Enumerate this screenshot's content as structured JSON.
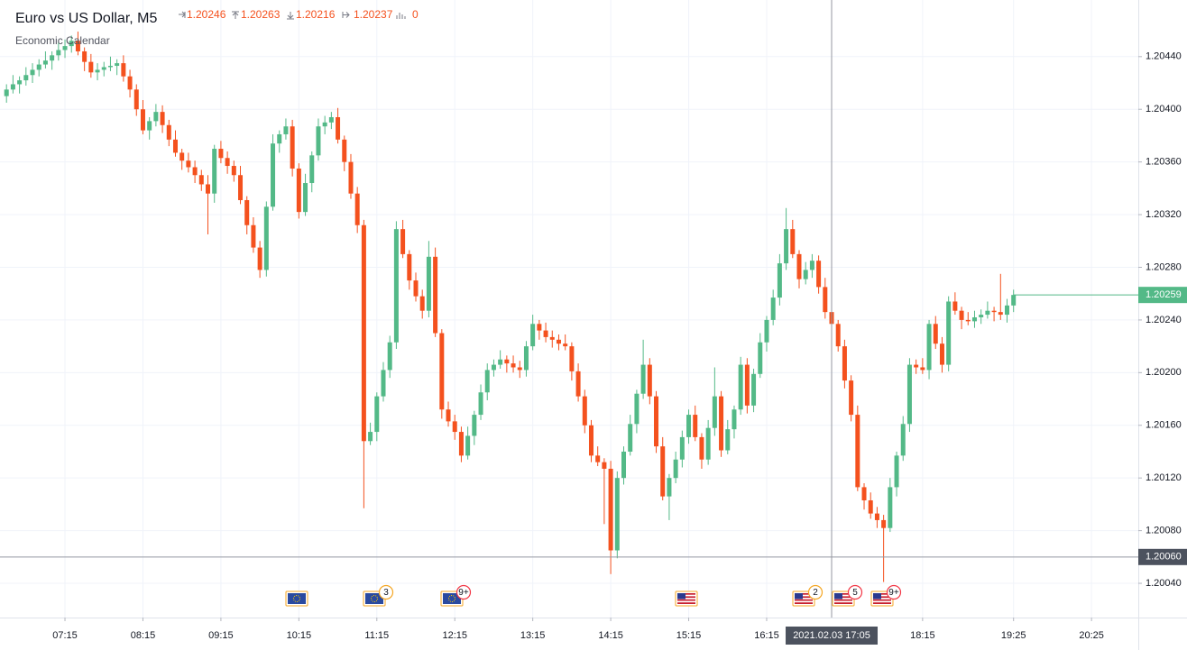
{
  "chart_data": {
    "type": "candlestick",
    "title": "Euro vs US Dollar, M5",
    "subtitle": "Economic Calendar",
    "up_color": "#53b987",
    "down_color": "#f4511e",
    "grid": true,
    "volume": 0,
    "xlim": [
      385,
      1261
    ],
    "xticks": [
      {
        "value": 435,
        "label": "07:15"
      },
      {
        "value": 495,
        "label": "08:15"
      },
      {
        "value": 555,
        "label": "09:15"
      },
      {
        "value": 615,
        "label": "10:15"
      },
      {
        "value": 675,
        "label": "11:15"
      },
      {
        "value": 735,
        "label": "12:15"
      },
      {
        "value": 795,
        "label": "13:15"
      },
      {
        "value": 855,
        "label": "14:15"
      },
      {
        "value": 915,
        "label": "15:15"
      },
      {
        "value": 975,
        "label": "16:15"
      },
      {
        "value": 1095,
        "label": "18:15"
      },
      {
        "value": 1165,
        "label": "19:25"
      },
      {
        "value": 1225,
        "label": "20:25"
      }
    ],
    "ylim": [
      1.20014,
      1.20483
    ],
    "yticks": [
      {
        "value": 1.2004,
        "label": "1.20040"
      },
      {
        "value": 1.2008,
        "label": "1.20080"
      },
      {
        "value": 1.2012,
        "label": "1.20120"
      },
      {
        "value": 1.2016,
        "label": "1.20160"
      },
      {
        "value": 1.202,
        "label": "1.20200"
      },
      {
        "value": 1.2024,
        "label": "1.20240"
      },
      {
        "value": 1.2028,
        "label": "1.20280"
      },
      {
        "value": 1.2032,
        "label": "1.20320"
      },
      {
        "value": 1.2036,
        "label": "1.20360"
      },
      {
        "value": 1.204,
        "label": "1.20400"
      },
      {
        "value": 1.2044,
        "label": "1.20440"
      }
    ],
    "crosshair": {
      "time": {
        "value": 1025,
        "label": "2021.02.03 17:05"
      },
      "price": {
        "value": 1.2006,
        "label": "1.20060"
      }
    },
    "event_counts": [
      "3",
      "9+",
      "2",
      "5",
      "9+"
    ],
    "x": [
      390,
      395,
      400,
      405,
      410,
      415,
      420,
      425,
      430,
      435,
      440,
      445,
      450,
      455,
      460,
      465,
      470,
      475,
      480,
      485,
      490,
      495,
      500,
      505,
      510,
      515,
      520,
      525,
      530,
      535,
      540,
      545,
      550,
      555,
      560,
      565,
      570,
      575,
      580,
      585,
      590,
      595,
      600,
      605,
      610,
      615,
      620,
      625,
      630,
      635,
      640,
      645,
      650,
      655,
      660,
      665,
      670,
      675,
      680,
      685,
      690,
      695,
      700,
      705,
      710,
      715,
      720,
      725,
      730,
      735,
      740,
      745,
      750,
      755,
      760,
      765,
      770,
      775,
      780,
      785,
      790,
      795,
      800,
      805,
      810,
      815,
      820,
      825,
      830,
      835,
      840,
      845,
      850,
      855,
      860,
      865,
      870,
      875,
      880,
      885,
      890,
      895,
      900,
      905,
      910,
      915,
      920,
      925,
      930,
      935,
      940,
      945,
      950,
      955,
      960,
      965,
      970,
      975,
      980,
      985,
      990,
      995,
      1000,
      1005,
      1010,
      1015,
      1020,
      1025,
      1030,
      1035,
      1040,
      1045,
      1050,
      1055,
      1060,
      1065,
      1070,
      1075,
      1080,
      1085,
      1090,
      1095,
      1100,
      1105,
      1110,
      1115,
      1120,
      1125,
      1130,
      1135,
      1140,
      1145,
      1150,
      1155,
      1160,
      1165
    ],
    "candles": [
      [
        1.2041,
        1.20419,
        1.20405,
        1.20415
      ],
      [
        1.20415,
        1.20426,
        1.20412,
        1.20419
      ],
      [
        1.20419,
        1.20425,
        1.20412,
        1.20422
      ],
      [
        1.20422,
        1.20432,
        1.20418,
        1.20426
      ],
      [
        1.20426,
        1.20435,
        1.2042,
        1.2043
      ],
      [
        1.2043,
        1.20438,
        1.20425,
        1.20434
      ],
      [
        1.20434,
        1.20444,
        1.20431,
        1.20437
      ],
      [
        1.20437,
        1.20444,
        1.2043,
        1.20441
      ],
      [
        1.20441,
        1.20451,
        1.20437,
        1.20445
      ],
      [
        1.20445,
        1.20453,
        1.20439,
        1.20448
      ],
      [
        1.20448,
        1.20456,
        1.20443,
        1.20452
      ],
      [
        1.20452,
        1.20459,
        1.20441,
        1.20444
      ],
      [
        1.20444,
        1.20447,
        1.20429,
        1.20436
      ],
      [
        1.20436,
        1.20442,
        1.20424,
        1.20428
      ],
      [
        1.20428,
        1.20435,
        1.20422,
        1.2043
      ],
      [
        1.2043,
        1.20436,
        1.20425,
        1.20432
      ],
      [
        1.20432,
        1.2044,
        1.20429,
        1.20433
      ],
      [
        1.20433,
        1.20438,
        1.20426,
        1.20435
      ],
      [
        1.20435,
        1.20441,
        1.20421,
        1.20425
      ],
      [
        1.20425,
        1.2043,
        1.20409,
        1.20415
      ],
      [
        1.20415,
        1.20419,
        1.20395,
        1.204
      ],
      [
        1.204,
        1.20407,
        1.20381,
        1.20384
      ],
      [
        1.20384,
        1.20394,
        1.20377,
        1.20391
      ],
      [
        1.20391,
        1.20404,
        1.20387,
        1.20398
      ],
      [
        1.20398,
        1.20403,
        1.20382,
        1.20388
      ],
      [
        1.20388,
        1.20392,
        1.20372,
        1.20377
      ],
      [
        1.20377,
        1.20384,
        1.20364,
        1.20367
      ],
      [
        1.20367,
        1.2037,
        1.20354,
        1.20361
      ],
      [
        1.20361,
        1.20367,
        1.20352,
        1.20356
      ],
      [
        1.20356,
        1.20361,
        1.20344,
        1.2035
      ],
      [
        1.2035,
        1.20354,
        1.20338,
        1.20343
      ],
      [
        1.20343,
        1.2035,
        1.20305,
        1.20336
      ],
      [
        1.20336,
        1.20373,
        1.20329,
        1.2037
      ],
      [
        1.2037,
        1.20376,
        1.20359,
        1.20363
      ],
      [
        1.20363,
        1.20368,
        1.20351,
        1.20357
      ],
      [
        1.20357,
        1.20361,
        1.20345,
        1.2035
      ],
      [
        1.2035,
        1.20357,
        1.20328,
        1.20331
      ],
      [
        1.20331,
        1.20334,
        1.20305,
        1.20312
      ],
      [
        1.20312,
        1.20318,
        1.20291,
        1.20295
      ],
      [
        1.20295,
        1.203,
        1.20272,
        1.20278
      ],
      [
        1.20278,
        1.2033,
        1.20273,
        1.20326
      ],
      [
        1.20326,
        1.20381,
        1.20323,
        1.20374
      ],
      [
        1.20374,
        1.20384,
        1.20367,
        1.20381
      ],
      [
        1.20381,
        1.20393,
        1.20377,
        1.20387
      ],
      [
        1.20387,
        1.20392,
        1.20349,
        1.20355
      ],
      [
        1.20355,
        1.20359,
        1.20317,
        1.20322
      ],
      [
        1.20322,
        1.20351,
        1.20319,
        1.20344
      ],
      [
        1.20344,
        1.20368,
        1.20337,
        1.20365
      ],
      [
        1.20365,
        1.20393,
        1.20361,
        1.20387
      ],
      [
        1.20387,
        1.20395,
        1.20381,
        1.2039
      ],
      [
        1.2039,
        1.20398,
        1.20385,
        1.20394
      ],
      [
        1.20394,
        1.20401,
        1.20374,
        1.20377
      ],
      [
        1.20377,
        1.2038,
        1.20353,
        1.2036
      ],
      [
        1.2036,
        1.20366,
        1.20332,
        1.20336
      ],
      [
        1.20336,
        1.20341,
        1.20306,
        1.20312
      ],
      [
        1.20312,
        1.20316,
        1.20097,
        1.20148
      ],
      [
        1.20148,
        1.20162,
        1.20145,
        1.20155
      ],
      [
        1.20155,
        1.20185,
        1.20148,
        1.20182
      ],
      [
        1.20182,
        1.20208,
        1.20178,
        1.20202
      ],
      [
        1.20202,
        1.20228,
        1.20196,
        1.20223
      ],
      [
        1.20223,
        1.20315,
        1.20218,
        1.20309
      ],
      [
        1.20309,
        1.20316,
        1.20287,
        1.2029
      ],
      [
        1.2029,
        1.20293,
        1.20263,
        1.2027
      ],
      [
        1.2027,
        1.20276,
        1.20254,
        1.20258
      ],
      [
        1.20258,
        1.20263,
        1.20241,
        1.20247
      ],
      [
        1.20247,
        1.203,
        1.20242,
        1.20288
      ],
      [
        1.20288,
        1.20295,
        1.20227,
        1.2023
      ],
      [
        1.2023,
        1.20233,
        1.20165,
        1.20172
      ],
      [
        1.20172,
        1.20178,
        1.20159,
        1.20163
      ],
      [
        1.20163,
        1.20168,
        1.20149,
        1.20155
      ],
      [
        1.20155,
        1.20159,
        1.20132,
        1.20137
      ],
      [
        1.20137,
        1.20159,
        1.20134,
        1.20152
      ],
      [
        1.20152,
        1.20171,
        1.20145,
        1.20168
      ],
      [
        1.20168,
        1.20191,
        1.20164,
        1.20185
      ],
      [
        1.20185,
        1.20207,
        1.20179,
        1.20202
      ],
      [
        1.20202,
        1.2021,
        1.20197,
        1.20206
      ],
      [
        1.20206,
        1.20217,
        1.20203,
        1.2021
      ],
      [
        1.2021,
        1.20213,
        1.202,
        1.20207
      ],
      [
        1.20207,
        1.20213,
        1.202,
        1.20204
      ],
      [
        1.20204,
        1.20209,
        1.20196,
        1.20202
      ],
      [
        1.20202,
        1.20224,
        1.20197,
        1.2022
      ],
      [
        1.2022,
        1.20244,
        1.20217,
        1.20237
      ],
      [
        1.20237,
        1.2024,
        1.20225,
        1.20232
      ],
      [
        1.20232,
        1.20238,
        1.20223,
        1.20227
      ],
      [
        1.20227,
        1.20232,
        1.20219,
        1.20225
      ],
      [
        1.20225,
        1.20229,
        1.20217,
        1.20222
      ],
      [
        1.20222,
        1.20229,
        1.20217,
        1.2022
      ],
      [
        1.2022,
        1.20223,
        1.20194,
        1.20201
      ],
      [
        1.20201,
        1.20207,
        1.20178,
        1.20182
      ],
      [
        1.20182,
        1.20187,
        1.20154,
        1.2016
      ],
      [
        1.2016,
        1.20164,
        1.20132,
        1.20137
      ],
      [
        1.20137,
        1.20144,
        1.20129,
        1.20132
      ],
      [
        1.20132,
        1.20135,
        1.20085,
        1.20127
      ],
      [
        1.20127,
        1.20133,
        1.20047,
        1.20065
      ],
      [
        1.20065,
        1.20125,
        1.20059,
        1.2012
      ],
      [
        1.2012,
        1.20144,
        1.20115,
        1.2014
      ],
      [
        1.2014,
        1.20168,
        1.20137,
        1.20161
      ],
      [
        1.20161,
        1.20187,
        1.20154,
        1.20184
      ],
      [
        1.20184,
        1.20225,
        1.2018,
        1.20206
      ],
      [
        1.20206,
        1.20211,
        1.20176,
        1.20182
      ],
      [
        1.20182,
        1.20186,
        1.20139,
        1.20144
      ],
      [
        1.20144,
        1.20151,
        1.20103,
        1.20106
      ],
      [
        1.20106,
        1.20123,
        1.20088,
        1.2012
      ],
      [
        1.2012,
        1.2014,
        1.20116,
        1.20134
      ],
      [
        1.20134,
        1.20156,
        1.20128,
        1.20151
      ],
      [
        1.20151,
        1.20172,
        1.20146,
        1.20168
      ],
      [
        1.20168,
        1.20175,
        1.20148,
        1.20151
      ],
      [
        1.20151,
        1.20154,
        1.20127,
        1.20134
      ],
      [
        1.20134,
        1.20164,
        1.2013,
        1.20158
      ],
      [
        1.20158,
        1.20204,
        1.20152,
        1.20182
      ],
      [
        1.20182,
        1.20186,
        1.20136,
        1.20141
      ],
      [
        1.20141,
        1.20164,
        1.20138,
        1.20157
      ],
      [
        1.20157,
        1.20175,
        1.2015,
        1.20172
      ],
      [
        1.20172,
        1.20212,
        1.20168,
        1.20206
      ],
      [
        1.20206,
        1.20211,
        1.20169,
        1.20175
      ],
      [
        1.20175,
        1.20203,
        1.2017,
        1.20199
      ],
      [
        1.20199,
        1.2023,
        1.20196,
        1.20223
      ],
      [
        1.20223,
        1.20243,
        1.20216,
        1.2024
      ],
      [
        1.2024,
        1.20263,
        1.20236,
        1.20257
      ],
      [
        1.20257,
        1.2029,
        1.20251,
        1.20283
      ],
      [
        1.20283,
        1.20325,
        1.20278,
        1.20309
      ],
      [
        1.20309,
        1.20316,
        1.20287,
        1.2029
      ],
      [
        1.2029,
        1.20293,
        1.20264,
        1.20271
      ],
      [
        1.20271,
        1.20284,
        1.20267,
        1.20278
      ],
      [
        1.20278,
        1.2029,
        1.20272,
        1.20285
      ],
      [
        1.20285,
        1.20289,
        1.2026,
        1.20265
      ],
      [
        1.20265,
        1.20272,
        1.20241,
        1.20246
      ],
      [
        1.20246,
        1.20263,
        1.20216,
        1.20237
      ],
      [
        1.20237,
        1.2024,
        1.20216,
        1.2022
      ],
      [
        1.2022,
        1.20225,
        1.20188,
        1.20194
      ],
      [
        1.20194,
        1.20198,
        1.20163,
        1.20168
      ],
      [
        1.20168,
        1.20175,
        1.2011,
        1.20113
      ],
      [
        1.20113,
        1.20116,
        1.20096,
        1.20103
      ],
      [
        1.20103,
        1.20109,
        1.20089,
        1.20093
      ],
      [
        1.20093,
        1.20098,
        1.20082,
        1.20088
      ],
      [
        1.20088,
        1.20092,
        1.20041,
        1.20082
      ],
      [
        1.20082,
        1.2012,
        1.20079,
        1.20113
      ],
      [
        1.20113,
        1.2014,
        1.20106,
        1.20137
      ],
      [
        1.20137,
        1.20167,
        1.20133,
        1.20161
      ],
      [
        1.20161,
        1.20211,
        1.20155,
        1.20206
      ],
      [
        1.20206,
        1.2021,
        1.20199,
        1.20204
      ],
      [
        1.20204,
        1.20211,
        1.20199,
        1.20202
      ],
      [
        1.20202,
        1.2024,
        1.20195,
        1.20237
      ],
      [
        1.20237,
        1.20243,
        1.20218,
        1.20222
      ],
      [
        1.20222,
        1.20227,
        1.202,
        1.20206
      ],
      [
        1.20206,
        1.20258,
        1.20201,
        1.20254
      ],
      [
        1.20254,
        1.20261,
        1.20244,
        1.20247
      ],
      [
        1.20247,
        1.2025,
        1.20233,
        1.2024
      ],
      [
        1.2024,
        1.20246,
        1.20236,
        1.20239
      ],
      [
        1.20239,
        1.20247,
        1.20234,
        1.20242
      ],
      [
        1.20242,
        1.20248,
        1.20237,
        1.20244
      ],
      [
        1.20244,
        1.20254,
        1.20241,
        1.20247
      ],
      [
        1.20247,
        1.2025,
        1.20239,
        1.20246
      ],
      [
        1.20246,
        1.20275,
        1.2024,
        1.20244
      ],
      [
        1.20244,
        1.20256,
        1.20238,
        1.20251
      ],
      [
        1.20251,
        1.20263,
        1.20246,
        1.20259
      ]
    ]
  }
}
